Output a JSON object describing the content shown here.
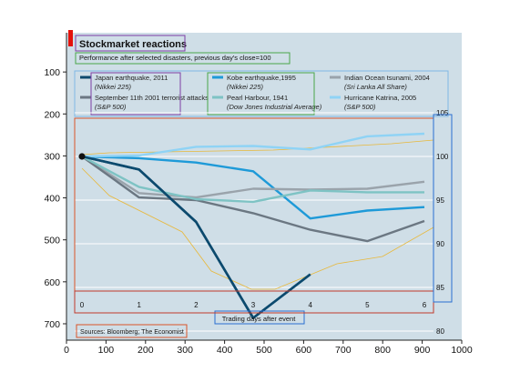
{
  "figure": {
    "outer_x_ticks": [
      "0",
      "100",
      "200",
      "300",
      "400",
      "500",
      "600",
      "700",
      "800",
      "900",
      "1000"
    ],
    "outer_y_ticks": [
      "100",
      "200",
      "300",
      "400",
      "500",
      "600",
      "700"
    ]
  },
  "chart_data": {
    "type": "line",
    "title": "Stockmarket reactions",
    "subtitle": "Performance after selected disasters, previous day's close=100",
    "xlabel": "Trading days after event",
    "x_ticks": [
      "0",
      "1",
      "2",
      "3",
      "4",
      "5",
      "6"
    ],
    "y_ticks": [
      "80",
      "85",
      "90",
      "95",
      "100",
      "105"
    ],
    "xlim": [
      0,
      6
    ],
    "ylim": [
      80,
      106
    ],
    "grid": "horizontal",
    "legend_position": "top",
    "source": "Sources: Bloomberg; The Economist",
    "series": [
      {
        "label": "Japan earthquake, 2011",
        "index": "(Nikkei 225)",
        "color": "#0c4a6e",
        "width": 2.6,
        "x": [
          0,
          1,
          2,
          3,
          4
        ],
        "y": [
          100,
          98.5,
          92.5,
          81.5,
          86.5
        ]
      },
      {
        "label": "Kobe earthquake,1995",
        "index": "(Nikkei 225)",
        "color": "#1e9ad8",
        "width": 2.4,
        "x": [
          0,
          1,
          2,
          3,
          4,
          5,
          6
        ],
        "y": [
          100,
          99.8,
          99.3,
          98.3,
          92.9,
          93.8,
          94.2
        ]
      },
      {
        "label": "Indian Ocean tsunami, 2004",
        "index": "(Sri Lanka All Share)",
        "color": "#9aa3ab",
        "width": 2.4,
        "x": [
          0,
          1,
          2,
          3,
          4,
          5,
          6
        ],
        "y": [
          100,
          95.8,
          95.3,
          96.3,
          96.2,
          96.3,
          97.1
        ]
      },
      {
        "label": "September 11th 2001 terrorist attacks",
        "index": "(S&P 500)",
        "color": "#6b7782",
        "width": 2.4,
        "x": [
          0,
          1,
          2,
          3,
          4,
          5,
          6
        ],
        "y": [
          100,
          95.3,
          95.0,
          93.5,
          91.6,
          90.3,
          92.6
        ]
      },
      {
        "label": "Pearl Harbour, 1941",
        "index": "(Dow Jones Industrial Average)",
        "color": "#7ec3c4",
        "width": 2.4,
        "x": [
          0,
          1,
          2,
          3,
          4,
          5,
          6
        ],
        "y": [
          100,
          96.5,
          95.1,
          94.8,
          96.1,
          95.9,
          95.9
        ]
      },
      {
        "label": "Hurricane Katrina, 2005",
        "index": "(S&P 500)",
        "color": "#8fd3f5",
        "width": 2.4,
        "x": [
          0,
          1,
          2,
          3,
          4,
          5,
          6
        ],
        "y": [
          100,
          100.1,
          101.1,
          101.2,
          100.8,
          102.3,
          102.6
        ]
      }
    ]
  }
}
